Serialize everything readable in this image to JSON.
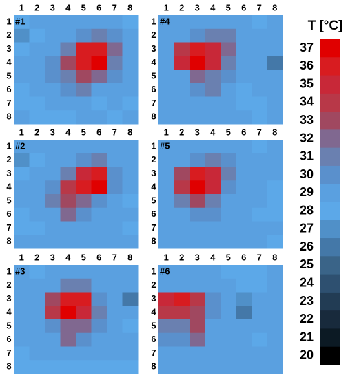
{
  "chart_data": [
    {
      "type": "heatmap",
      "title": "#1",
      "x": [
        "1",
        "2",
        "3",
        "4",
        "5",
        "6",
        "7",
        "8"
      ],
      "y": [
        "1",
        "2",
        "3",
        "4",
        "5",
        "6",
        "7",
        "8"
      ],
      "values": [
        [
          28,
          29,
          29,
          29,
          29,
          29,
          29,
          28
        ],
        [
          27,
          28,
          29,
          29,
          30,
          31,
          30,
          29
        ],
        [
          28,
          29,
          29,
          31,
          36,
          36,
          32,
          29
        ],
        [
          29,
          29,
          30,
          33,
          36,
          37,
          31,
          29
        ],
        [
          29,
          29,
          30,
          31,
          33,
          32,
          30,
          29
        ],
        [
          28,
          29,
          29,
          30,
          31,
          29,
          29,
          29
        ],
        [
          28,
          28,
          29,
          29,
          29,
          28,
          29,
          28
        ],
        [
          29,
          28,
          28,
          28,
          29,
          29,
          28,
          29
        ]
      ]
    },
    {
      "type": "heatmap",
      "title": "#2",
      "x": [
        "1",
        "2",
        "3",
        "4",
        "5",
        "6",
        "7",
        "8"
      ],
      "y": [
        "1",
        "2",
        "3",
        "4",
        "5",
        "6",
        "7",
        "8"
      ],
      "values": [
        [
          29,
          29,
          29,
          29,
          29,
          29,
          29,
          29
        ],
        [
          27,
          28,
          29,
          29,
          30,
          31,
          29,
          29
        ],
        [
          28,
          29,
          29,
          31,
          35,
          36,
          30,
          29
        ],
        [
          29,
          29,
          30,
          34,
          36,
          37,
          30,
          29
        ],
        [
          29,
          29,
          31,
          33,
          32,
          30,
          29,
          28
        ],
        [
          28,
          29,
          29,
          32,
          30,
          29,
          29,
          29
        ],
        [
          28,
          28,
          29,
          29,
          29,
          29,
          29,
          28
        ],
        [
          29,
          29,
          29,
          29,
          29,
          29,
          29,
          29
        ]
      ]
    },
    {
      "type": "heatmap",
      "title": "#3",
      "x": [
        "1",
        "2",
        "3",
        "4",
        "5",
        "6",
        "7",
        "8"
      ],
      "y": [
        "1",
        "2",
        "3",
        "4",
        "5",
        "6",
        "7",
        "8"
      ],
      "values": [
        [
          29,
          28,
          29,
          29,
          29,
          29,
          29,
          29
        ],
        [
          29,
          29,
          29,
          31,
          31,
          29,
          29,
          29
        ],
        [
          29,
          29,
          33,
          36,
          36,
          30,
          29,
          26
        ],
        [
          29,
          29,
          34,
          37,
          35,
          31,
          29,
          29
        ],
        [
          29,
          29,
          30,
          32,
          32,
          30,
          29,
          28
        ],
        [
          29,
          29,
          29,
          32,
          30,
          29,
          29,
          29
        ],
        [
          28,
          29,
          29,
          29,
          29,
          29,
          29,
          29
        ],
        [
          28,
          28,
          28,
          28,
          28,
          28,
          28,
          28
        ]
      ]
    },
    {
      "type": "heatmap",
      "title": "#4",
      "x": [
        "1",
        "2",
        "3",
        "4",
        "5",
        "6",
        "7",
        "8"
      ],
      "y": [
        "1",
        "2",
        "3",
        "4",
        "5",
        "6",
        "7",
        "8"
      ],
      "values": [
        [
          29,
          29,
          29,
          29,
          29,
          29,
          28,
          29
        ],
        [
          29,
          29,
          30,
          31,
          31,
          29,
          29,
          29
        ],
        [
          29,
          34,
          36,
          35,
          32,
          29,
          29,
          29
        ],
        [
          29,
          35,
          37,
          35,
          31,
          29,
          29,
          26
        ],
        [
          29,
          29,
          32,
          31,
          30,
          29,
          29,
          29
        ],
        [
          29,
          29,
          30,
          31,
          29,
          28,
          29,
          29
        ],
        [
          29,
          29,
          29,
          29,
          29,
          28,
          28,
          29
        ],
        [
          29,
          29,
          29,
          29,
          29,
          29,
          28,
          29
        ]
      ]
    },
    {
      "type": "heatmap",
      "title": "#5",
      "x": [
        "1",
        "2",
        "3",
        "4",
        "5",
        "6",
        "7",
        "8"
      ],
      "y": [
        "1",
        "2",
        "3",
        "4",
        "5",
        "6",
        "7",
        "8"
      ],
      "values": [
        [
          29,
          29,
          29,
          29,
          29,
          29,
          28,
          29
        ],
        [
          29,
          29,
          30,
          31,
          30,
          29,
          29,
          29
        ],
        [
          29,
          33,
          36,
          35,
          31,
          29,
          29,
          29
        ],
        [
          29,
          34,
          37,
          35,
          30,
          29,
          29,
          28
        ],
        [
          29,
          31,
          33,
          31,
          29,
          29,
          29,
          28
        ],
        [
          29,
          29,
          30,
          30,
          29,
          29,
          28,
          28
        ],
        [
          29,
          29,
          29,
          29,
          29,
          29,
          29,
          29
        ],
        [
          29,
          29,
          29,
          29,
          29,
          29,
          29,
          28
        ]
      ]
    },
    {
      "type": "heatmap",
      "title": "#6",
      "x": [
        "1",
        "2",
        "3",
        "4",
        "5",
        "6",
        "7",
        "8"
      ],
      "y": [
        "1",
        "2",
        "3",
        "4",
        "5",
        "6",
        "7",
        "8"
      ],
      "values": [
        [
          29,
          29,
          29,
          29,
          28,
          28,
          28,
          29
        ],
        [
          29,
          29,
          29,
          29,
          29,
          28,
          28,
          29
        ],
        [
          35,
          36,
          34,
          30,
          29,
          27,
          29,
          29
        ],
        [
          34,
          34,
          33,
          30,
          29,
          26,
          29,
          29
        ],
        [
          31,
          31,
          33,
          29,
          29,
          29,
          29,
          29
        ],
        [
          30,
          30,
          32,
          29,
          29,
          29,
          28,
          29
        ],
        [
          29,
          29,
          29,
          29,
          29,
          29,
          29,
          29
        ],
        [
          29,
          29,
          29,
          29,
          29,
          29,
          29,
          29
        ]
      ]
    }
  ],
  "colorbar": {
    "title": "T [°C]",
    "ticks": [
      37,
      36,
      35,
      34,
      33,
      32,
      31,
      30,
      29,
      28,
      27,
      26,
      25,
      24,
      23,
      22,
      21,
      20
    ],
    "colors": [
      "#e00000",
      "#d81c20",
      "#c82838",
      "#b83848",
      "#a04860",
      "#806890",
      "#6a80b0",
      "#5a90cc",
      "#5aa0e0",
      "#5ca8e8",
      "#5090c8",
      "#4478a8",
      "#3a6488",
      "#2e5070",
      "#223c54",
      "#182a3c",
      "#0c1a24",
      "#000000"
    ]
  }
}
